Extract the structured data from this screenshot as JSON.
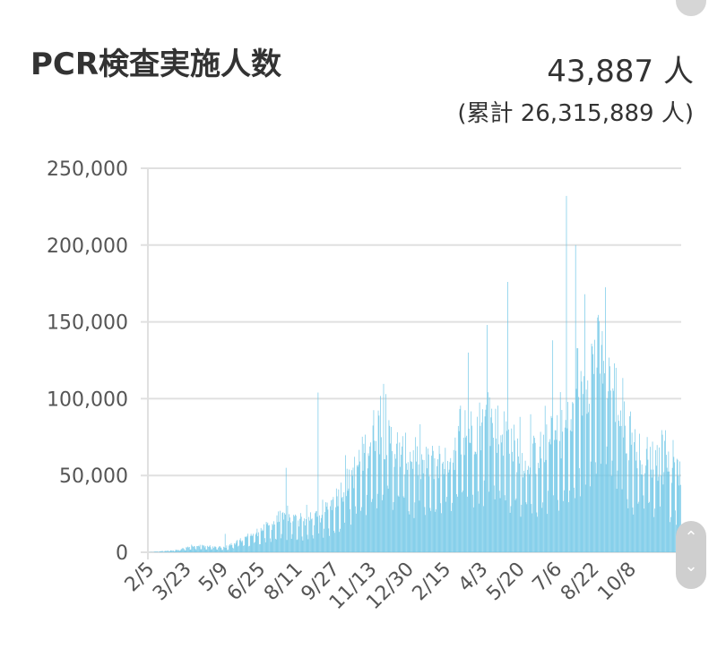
{
  "header": {
    "title": "PCR検査実施人数",
    "latest": "43,887 人",
    "cumulative": "(累計 26,315,889 人)"
  },
  "icons": {
    "scroll_up": "chevron-up-icon",
    "scroll_down": "chevron-down-icon"
  },
  "colors": {
    "bar": "#6ec6e6",
    "grid": "#e0e0e0",
    "axis": "#555555"
  },
  "chart_data": {
    "type": "bar",
    "title": "PCR検査実施人数",
    "ylim": [
      0,
      250000
    ],
    "y_ticks": [
      "0",
      "50,000",
      "100,000",
      "150,000",
      "200,000",
      "250,000"
    ],
    "x_ticks": [
      "2/5",
      "3/23",
      "5/9",
      "6/25",
      "8/11",
      "9/27",
      "11/13",
      "12/30",
      "2/15",
      "4/3",
      "5/20",
      "7/6",
      "8/22",
      "10/8"
    ],
    "grid": true,
    "legend": "none",
    "trend": {
      "x_days": [
        0,
        40,
        60,
        100,
        140,
        170,
        185,
        200,
        225,
        255,
        275,
        300,
        330,
        360,
        390,
        420,
        445,
        470,
        490,
        510,
        540,
        560,
        585,
        600,
        625,
        640,
        660,
        690
      ],
      "values": [
        0,
        1500,
        4500,
        3000,
        12000,
        20000,
        22000,
        20000,
        22000,
        40000,
        55000,
        80000,
        65000,
        55000,
        60000,
        75000,
        85000,
        75000,
        60000,
        62000,
        75000,
        85000,
        125000,
        125000,
        80000,
        65000,
        60000,
        50000
      ]
    },
    "peaks": [
      {
        "x_day": 101,
        "value": 12000
      },
      {
        "x_day": 181,
        "value": 55000
      },
      {
        "x_day": 223,
        "value": 104000
      },
      {
        "x_day": 312,
        "value": 103000
      },
      {
        "x_day": 420,
        "value": 130000
      },
      {
        "x_day": 445,
        "value": 148000
      },
      {
        "x_day": 472,
        "value": 176000
      },
      {
        "x_day": 531,
        "value": 138000
      },
      {
        "x_day": 549,
        "value": 232000
      },
      {
        "x_day": 561,
        "value": 200000
      },
      {
        "x_day": 573,
        "value": 168000
      },
      {
        "x_day": 595,
        "value": 135000
      }
    ],
    "last_value": 43887
  }
}
